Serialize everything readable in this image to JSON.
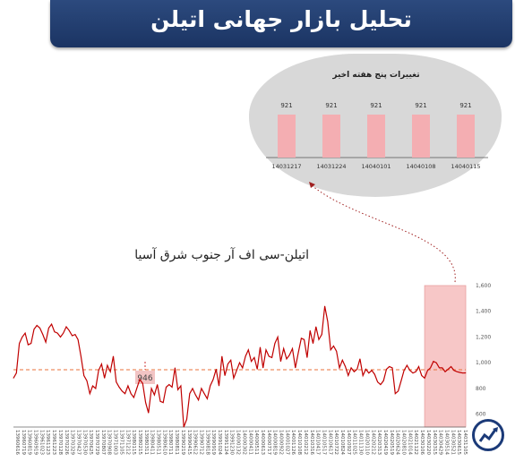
{
  "header": {
    "title": "تحلیل بازار جهانی اتیلن"
  },
  "colors": {
    "banner": "#1b3463",
    "line": "#c00000",
    "bar": "#f4aeb2",
    "highlight": "#f7c7c7",
    "reference": "#e8703a"
  },
  "chart_data": [
    {
      "type": "bar",
      "title": "تغییرات پنج هفته اخیر",
      "categories": [
        "14031217",
        "14031224",
        "14040101",
        "14040108",
        "14040115"
      ],
      "values": [
        921,
        921,
        921,
        921,
        921
      ],
      "value_labels": [
        "921",
        "921",
        "921",
        "921",
        "921"
      ]
    },
    {
      "type": "line",
      "title": "اتیلن-سی اف آر جنوب شرق آسیا",
      "ylim": [
        500,
        1600
      ],
      "yticks": [
        600,
        800,
        1000,
        1200,
        1400,
        1600
      ],
      "ytick_labels": [
        "600",
        "800",
        "1,000",
        "1,200",
        "1,400",
        "1,600"
      ],
      "reference_line": 946,
      "reference_label": "946",
      "x_tick_labels": [
        "13960616",
        "13960719",
        "13960819",
        "13960919",
        "13961023",
        "13961123",
        "13961223",
        "13970128",
        "13970226",
        "13970329",
        "13970427",
        "13970530",
        "13970625",
        "13970729",
        "13970807",
        "13970908",
        "13971003",
        "13971105",
        "13971212",
        "13980115",
        "13980215",
        "13980311",
        "13980411",
        "13980511",
        "13980610",
        "13980711",
        "13980811",
        "13990219",
        "13990415",
        "13990612",
        "13990712",
        "13990818",
        "13990919",
        "13991024",
        "13991124",
        "13991230",
        "14000132",
        "14000302",
        "14000411",
        "14000511",
        "14000613",
        "14000717",
        "14000819",
        "14000922",
        "14001027",
        "14001126",
        "14010108",
        "14010212",
        "14010316",
        "14010417",
        "14010517",
        "14010617",
        "14010722",
        "14010824",
        "14010927",
        "14011025",
        "14011130",
        "14020110",
        "14020212",
        "14020313",
        "14020419",
        "14020519",
        "14020624",
        "14020810",
        "14021014",
        "14021122",
        "14030106",
        "14030220",
        "14030315",
        "14030429",
        "14030514",
        "14030521",
        "14030615",
        "14031105"
      ],
      "values": [
        880,
        920,
        1150,
        1200,
        1230,
        1140,
        1150,
        1260,
        1290,
        1270,
        1220,
        1160,
        1270,
        1300,
        1240,
        1230,
        1200,
        1230,
        1280,
        1250,
        1210,
        1220,
        1180,
        1050,
        900,
        860,
        760,
        820,
        800,
        940,
        990,
        880,
        980,
        930,
        1050,
        850,
        810,
        780,
        760,
        820,
        760,
        730,
        800,
        870,
        840,
        690,
        610,
        800,
        750,
        830,
        700,
        690,
        810,
        830,
        810,
        960,
        790,
        820,
        500,
        560,
        760,
        800,
        750,
        710,
        800,
        760,
        720,
        820,
        870,
        950,
        820,
        1050,
        900,
        990,
        1020,
        880,
        940,
        1000,
        960,
        1050,
        1100,
        1010,
        1040,
        950,
        1120,
        960,
        1100,
        1050,
        1040,
        1150,
        1200,
        1010,
        1110,
        1030,
        1060,
        1110,
        960,
        1080,
        1190,
        1180,
        1040,
        1250,
        1150,
        1280,
        1180,
        1220,
        1440,
        1320,
        1100,
        1130,
        1090,
        960,
        1020,
        970,
        900,
        960,
        930,
        950,
        1030,
        900,
        950,
        920,
        940,
        910,
        850,
        830,
        860,
        950,
        970,
        960,
        760,
        780,
        860,
        940,
        980,
        940,
        920,
        930,
        970,
        900,
        880,
        940,
        960,
        1010,
        1000,
        960,
        960,
        930,
        950,
        970,
        940,
        930,
        925,
        920,
        921
      ]
    }
  ]
}
